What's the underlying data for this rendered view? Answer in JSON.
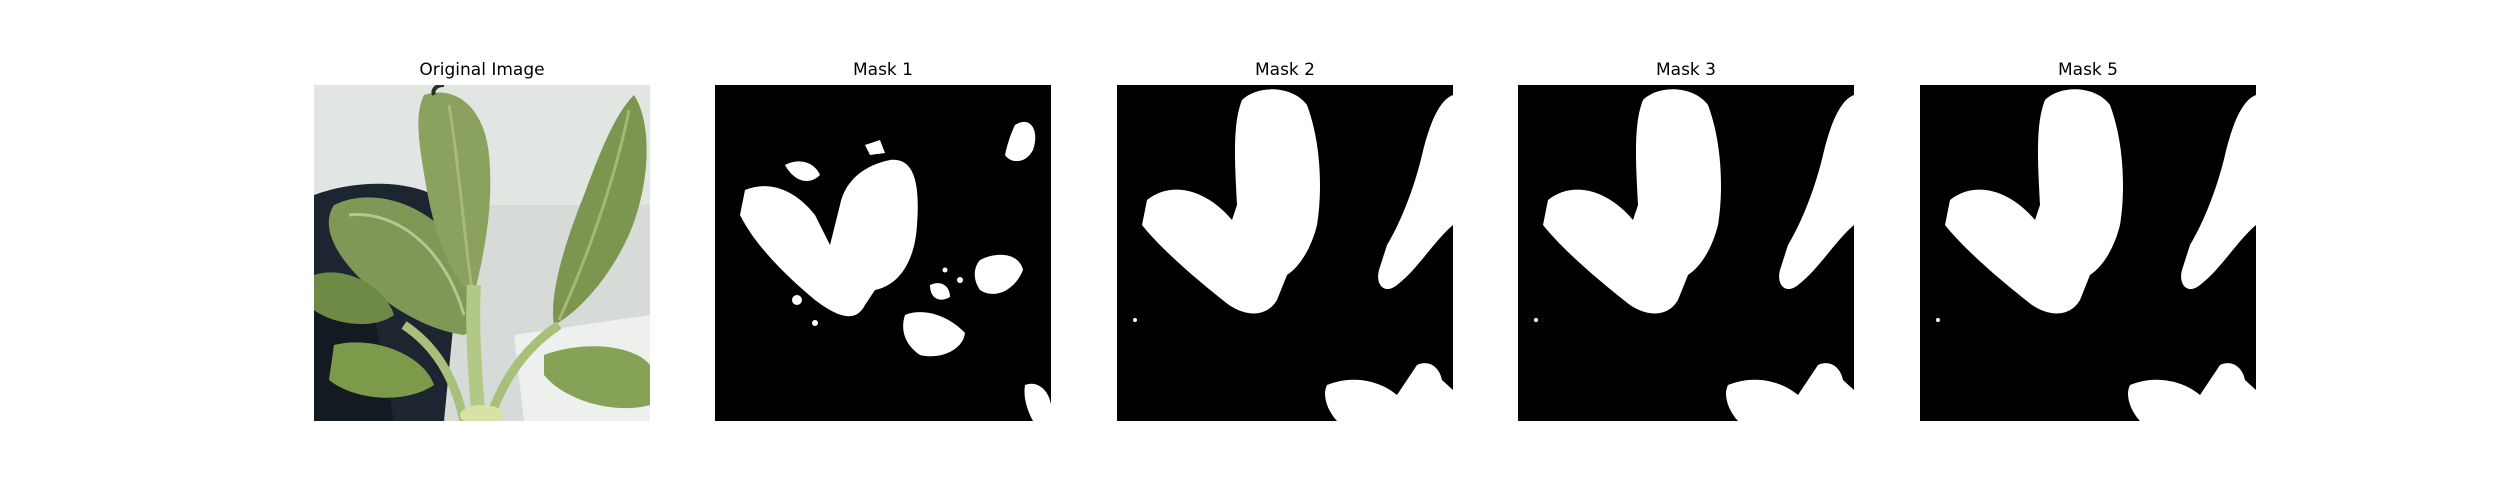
{
  "figure": {
    "panels": [
      {
        "title": "Original Image",
        "kind": "photo"
      },
      {
        "title": "Mask 1",
        "kind": "mask"
      },
      {
        "title": "Mask 2",
        "kind": "mask"
      },
      {
        "title": "Mask 3",
        "kind": "mask"
      },
      {
        "title": "Mask 5",
        "kind": "mask"
      }
    ]
  },
  "colors": {
    "background": "#ffffff",
    "mask_background": "#000000",
    "mask_foreground": "#ffffff",
    "backdrop_light": "#d7dcd8",
    "pot_dark": "#1c2430",
    "leaf_green": "#8aa05a",
    "leaf_light": "#b8c98c",
    "stem_green": "#a9c07a"
  }
}
